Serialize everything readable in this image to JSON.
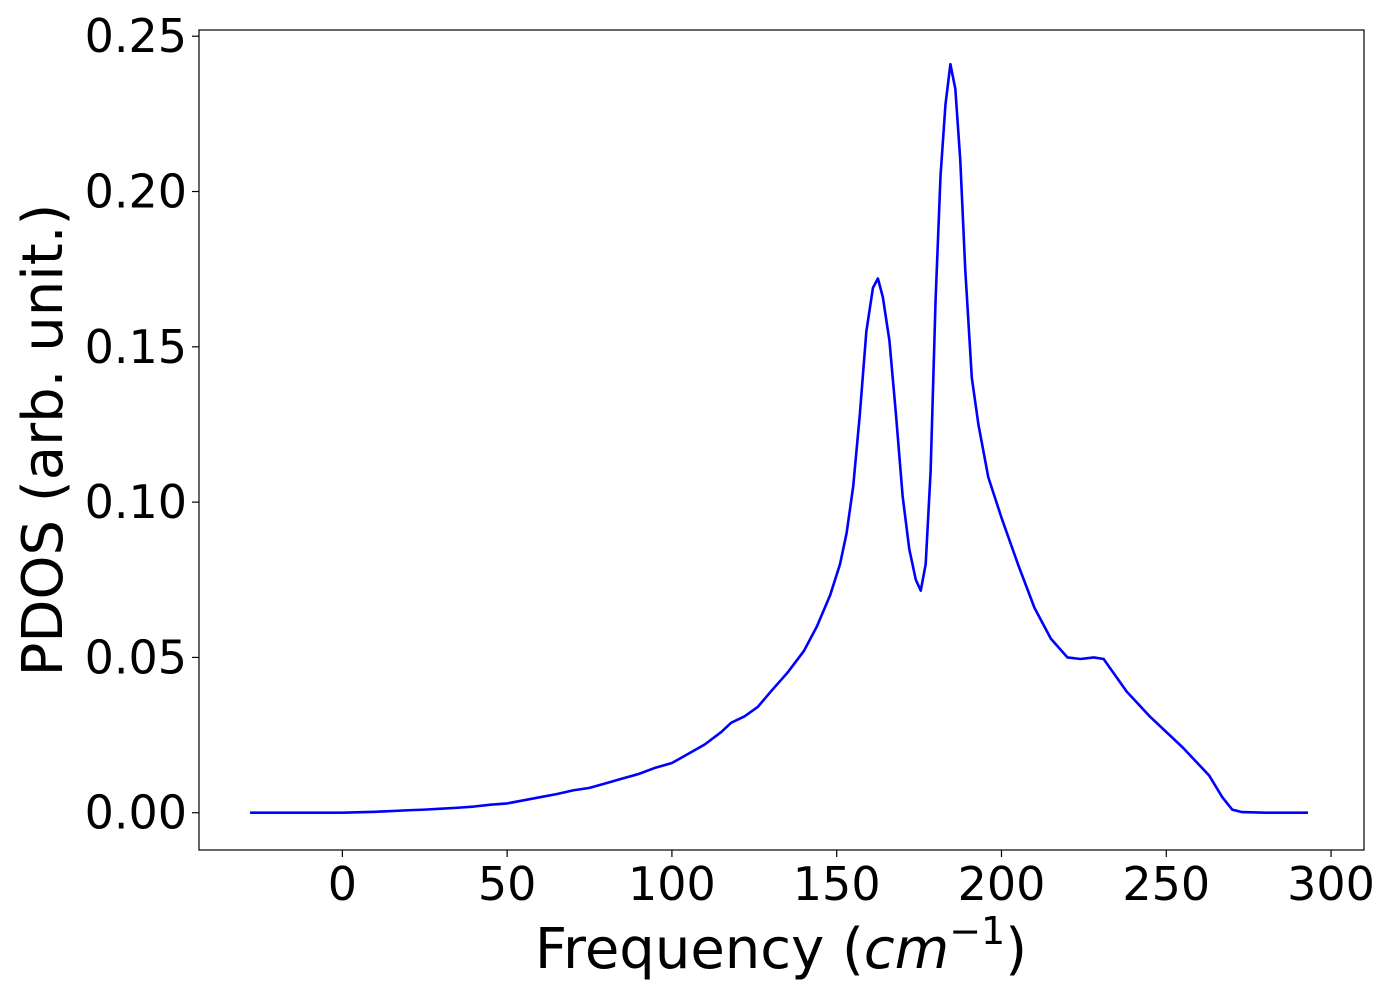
{
  "chart_data": {
    "type": "line",
    "title": "",
    "xlabel": "Frequency (",
    "xlabel_italic": "cm",
    "xlabel_sup": "−1",
    "xlabel_close": ")",
    "ylabel": "PDOS (arb. unit.)",
    "xlim": [
      -43.5,
      310
    ],
    "ylim": [
      -0.012,
      0.252
    ],
    "xticks": [
      0,
      50,
      100,
      150,
      200,
      250,
      300
    ],
    "xtick_labels": [
      "0",
      "50",
      "100",
      "150",
      "200",
      "250",
      "300"
    ],
    "yticks": [
      0.0,
      0.05,
      0.1,
      0.15,
      0.2,
      0.25
    ],
    "ytick_labels": [
      "0.00",
      "0.05",
      "0.10",
      "0.15",
      "0.20",
      "0.25"
    ],
    "grid": false,
    "legend": "none",
    "series": [
      {
        "color": "#0000ff",
        "x": [
          -28,
          -10,
          0,
          10,
          20,
          25,
          30,
          35,
          40,
          45,
          50,
          55,
          60,
          65,
          70,
          75,
          80,
          85,
          90,
          95,
          100,
          105,
          110,
          115,
          118,
          122,
          126,
          130,
          135,
          140,
          144,
          148,
          151,
          153,
          155,
          157,
          159,
          161,
          162.5,
          164,
          166,
          168,
          170,
          172,
          174,
          175.5,
          177,
          178.5,
          180,
          181.5,
          183,
          184.5,
          186,
          187.5,
          189,
          191,
          193,
          196,
          200,
          205,
          210,
          215,
          220,
          224,
          228,
          231,
          234,
          238,
          245,
          255,
          263,
          267,
          270,
          273,
          280,
          293
        ],
        "y": [
          0.0,
          0.0,
          0.0,
          0.0003,
          0.0008,
          0.001,
          0.0013,
          0.0016,
          0.002,
          0.0026,
          0.003,
          0.004,
          0.005,
          0.006,
          0.0072,
          0.008,
          0.0095,
          0.011,
          0.0125,
          0.0145,
          0.016,
          0.019,
          0.022,
          0.026,
          0.029,
          0.031,
          0.034,
          0.039,
          0.045,
          0.052,
          0.06,
          0.07,
          0.08,
          0.09,
          0.105,
          0.128,
          0.155,
          0.169,
          0.172,
          0.166,
          0.152,
          0.128,
          0.102,
          0.085,
          0.075,
          0.0715,
          0.08,
          0.11,
          0.165,
          0.205,
          0.228,
          0.241,
          0.233,
          0.21,
          0.175,
          0.14,
          0.125,
          0.108,
          0.095,
          0.08,
          0.066,
          0.056,
          0.05,
          0.0495,
          0.05,
          0.0495,
          0.045,
          0.039,
          0.031,
          0.021,
          0.012,
          0.005,
          0.001,
          0.0002,
          0.0,
          0.0
        ]
      }
    ]
  }
}
